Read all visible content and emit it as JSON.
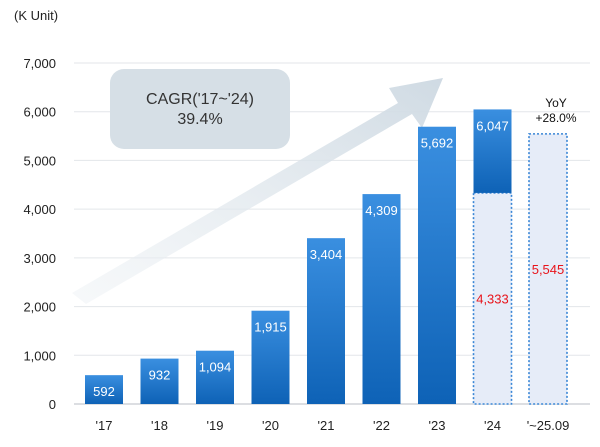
{
  "chart_data": {
    "type": "bar",
    "unit_label": "(K Unit)",
    "categories": [
      "'17",
      "'18",
      "'19",
      "'20",
      "'21",
      "'22",
      "'23",
      "'24",
      "'~25.09"
    ],
    "values": [
      592,
      932,
      1094,
      1915,
      3404,
      4309,
      5692,
      6047,
      5545
    ],
    "value_labels": [
      "592",
      "932",
      "1,094",
      "1,915",
      "3,404",
      "4,309",
      "5,692",
      "6,047",
      "5,545"
    ],
    "partial_period": {
      "category": "'24",
      "value": 4333,
      "label": "4,333",
      "style": "dotted-outline",
      "label_color": "#e8141b"
    },
    "forecast_bar_index": 8,
    "ylim": [
      0,
      7000
    ],
    "yticks": [
      0,
      1000,
      2000,
      3000,
      4000,
      5000,
      6000,
      7000
    ],
    "ytick_labels": [
      "0",
      "1,000",
      "2,000",
      "3,000",
      "4,000",
      "5,000",
      "6,000",
      "7,000"
    ],
    "annotations": {
      "cagr_line1": "CAGR('17~'24)",
      "cagr_line2": "39.4%",
      "yoy_line1": "YoY",
      "yoy_line2": "+28.0%"
    },
    "colors": {
      "bar_top": "#3a8fe0",
      "bar_bottom": "#0e62b6",
      "outline": "#3a86d6",
      "partial_fill": "#e6ecf8",
      "red_text": "#e8141b",
      "cagr_box": "#d6dfe6",
      "arrow": "#d9e3ea",
      "grid": "#e3e6ea"
    }
  }
}
